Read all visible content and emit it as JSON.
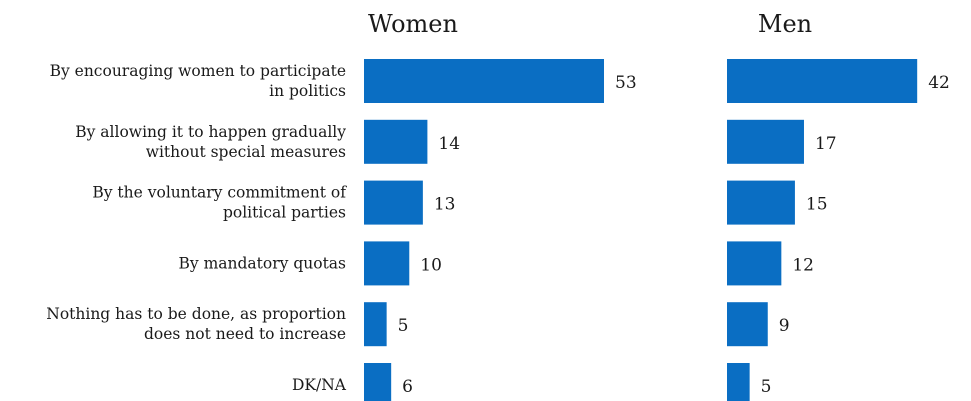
{
  "chart_data": {
    "type": "bar",
    "orientation": "horizontal",
    "categories": [
      [
        "By encouraging women to participate",
        "in politics"
      ],
      [
        "By allowing it to happen gradually",
        "without special measures"
      ],
      [
        "By the voluntary commitment of",
        "political parties"
      ],
      [
        "By mandatory quotas"
      ],
      [
        "Nothing has to be done, as proportion",
        "does not need to increase"
      ],
      [
        "DK/NA"
      ]
    ],
    "series": [
      {
        "name": "Women",
        "values": [
          53,
          14,
          13,
          10,
          5,
          6
        ]
      },
      {
        "name": "Men",
        "values": [
          42,
          17,
          15,
          12,
          9,
          5
        ]
      }
    ],
    "data_labels": true,
    "grid": false,
    "bar_color": "#0a6ec3"
  }
}
